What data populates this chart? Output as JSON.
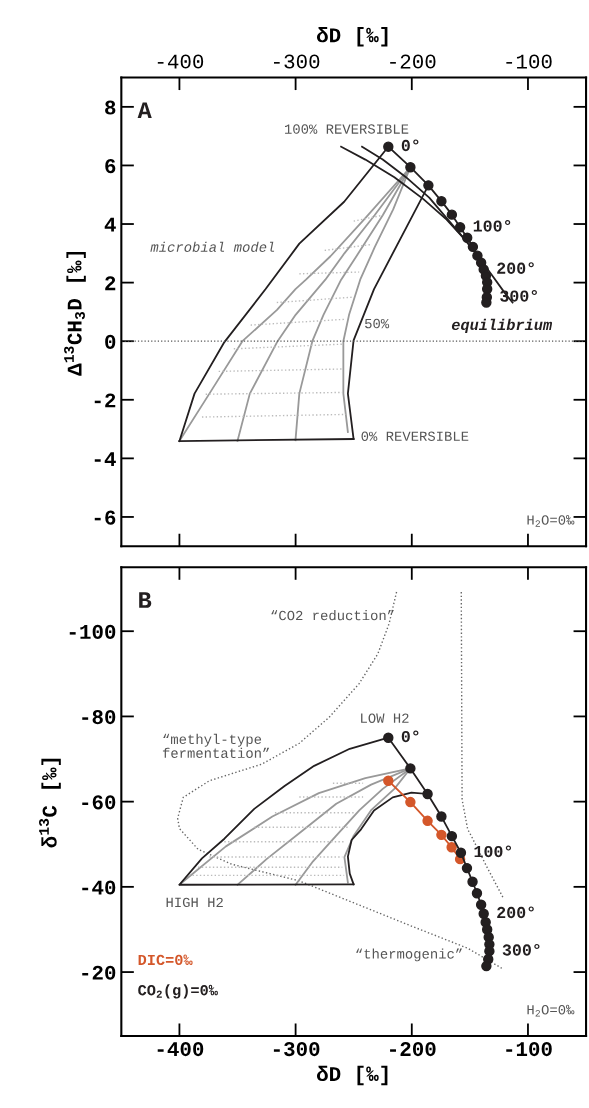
{
  "chart_data": [
    {
      "type": "line",
      "xlabel": "δD [‰]",
      "ylabel": "Δ$^{13}$CH$_{3}$D [‰]",
      "xlim": [
        -450,
        -50
      ],
      "xticks": [
        -400,
        -300,
        -200,
        -100
      ],
      "ylim": [
        -7,
        9
      ],
      "yticks": [
        -6,
        -4,
        -2,
        0,
        2,
        4,
        6,
        8
      ],
      "grid": false,
      "legend": false,
      "ref_lines": [
        {
          "axis": "y",
          "value": 0,
          "line_style": "dotted",
          "color": "#555555"
        }
      ],
      "annotations": [
        "A",
        "100% REVERSIBLE",
        "microbial model",
        "50%",
        "0% REVERSIBLE",
        "equilibrium",
        "H$_{2}$O=0‰",
        {
          "text": "0°",
          "x": -220.2,
          "y": 6.64
        },
        {
          "text": "100°",
          "x": -158.4,
          "y": 3.89
        },
        {
          "text": "200°",
          "x": -138.1,
          "y": 2.45
        },
        {
          "text": "300°",
          "x": -135.4,
          "y": 1.5
        }
      ],
      "series": [
        {
          "color": "#999999",
          "line_style": "solid",
          "x": [
            -201.2,
            -240,
            -270,
            -291.1,
            -300.1,
            -316,
            -345.8,
            -374.2,
            -400
          ],
          "values": [
            5.94,
            4.2,
            2.9,
            2.1,
            1.78,
            1.07,
            0.0,
            -1.79,
            -3.41
          ]
        },
        {
          "color": "#999999",
          "line_style": "solid",
          "x": [
            -201.2,
            -232,
            -258,
            -274.4,
            -300,
            -315.5,
            -339.4,
            -350
          ],
          "values": [
            5.94,
            4.3,
            3.0,
            2.1,
            0.9,
            0.0,
            -1.79,
            -3.4
          ]
        },
        {
          "color": "#999999",
          "line_style": "solid",
          "x": [
            -201.2,
            -225,
            -246,
            -260.8,
            -276,
            -285.6,
            -296.8,
            -300.1
          ],
          "values": [
            5.94,
            4.3,
            3.0,
            2.1,
            0.9,
            0.0,
            -1.79,
            -3.38
          ]
        },
        {
          "color": "#999999",
          "line_style": "solid",
          "x": [
            -201.2,
            -216,
            -232,
            -244.4,
            -254,
            -258.9,
            -258.9,
            -255
          ],
          "values": [
            5.94,
            4.5,
            3.2,
            2.1,
            0.9,
            0.0,
            -1.79,
            -3.1
          ]
        },
        {
          "color": "#bbbbbb",
          "line_style": "dotted",
          "x": [
            -380.6,
            -256.6
          ],
          "values": [
            -2.59,
            -2.5
          ]
        },
        {
          "color": "#bbbbbb",
          "line_style": "dotted",
          "x": [
            -377.4,
            -259.8
          ],
          "values": [
            -1.81,
            -1.75
          ]
        },
        {
          "color": "#bbbbbb",
          "line_style": "dotted",
          "x": [
            -366.2,
            -259.8
          ],
          "values": [
            -1.03,
            -0.95
          ]
        },
        {
          "color": "#bbbbbb",
          "line_style": "dotted",
          "x": [
            -353.2,
            -258.9
          ],
          "values": [
            -0.26,
            -0.1
          ]
        },
        {
          "color": "#bbbbbb",
          "line_style": "dotted",
          "x": [
            -338.7,
            -256.6
          ],
          "values": [
            0.55,
            0.75
          ]
        },
        {
          "color": "#bbbbbb",
          "line_style": "dotted",
          "x": [
            -316.2,
            -251.8
          ],
          "values": [
            1.32,
            1.5
          ]
        },
        {
          "color": "#bbbbbb",
          "line_style": "dotted",
          "x": [
            -296.8,
            -245.3
          ],
          "values": [
            2.3,
            2.36
          ]
        },
        {
          "color": "#bbbbbb",
          "line_style": "dotted",
          "x": [
            -275,
            -235
          ],
          "values": [
            3.1,
            3.3
          ]
        },
        {
          "color": "#bbbbbb",
          "line_style": "dotted",
          "x": [
            -250,
            -225
          ],
          "values": [
            4.1,
            4.3
          ]
        },
        {
          "color": "#231f20",
          "line_style": "solid",
          "x": [
            -220.2,
            -258.2,
            -296.8,
            -325.8,
            -361.3,
            -387,
            -400
          ],
          "values": [
            6.64,
            4.76,
            3.33,
            1.78,
            -0.03,
            -1.79,
            -3.41
          ]
        },
        {
          "color": "#231f20",
          "line_style": "solid",
          "x": [
            -185.7,
            -203.4,
            -232.5,
            -250.1,
            -255,
            -250.1
          ],
          "values": [
            5.32,
            3.98,
            1.78,
            0.03,
            -1.79,
            -3.34
          ]
        },
        {
          "color": "#231f20",
          "line_style": "solid",
          "x": [
            -400,
            -250.1
          ],
          "values": [
            -3.41,
            -3.34
          ]
        },
        {
          "color": "#231f20",
          "line_style": "solid",
          "x": [
            -260.8,
            -240,
            -215,
            -190,
            -170,
            -155,
            -142,
            -130,
            -120,
            -113.3
          ],
          "values": [
            6.64,
            6.2,
            5.6,
            4.85,
            4.15,
            3.5,
            2.85,
            2.2,
            1.65,
            1.32
          ]
        },
        {
          "color": "#231f20",
          "line_style": "solid",
          "x": [
            -242.8,
            -225,
            -205,
            -185,
            -170,
            -156
          ],
          "values": [
            6.64,
            6.2,
            5.6,
            4.9,
            4.2,
            3.55
          ]
        },
        {
          "color": "#231f20",
          "line_style": "solid",
          "marker": "circle",
          "x": [
            -220.2,
            -201.2,
            -185.7,
            -174.5,
            -165.5,
            -158.4,
            -152.3,
            -147.4,
            -143.5,
            -140.3,
            -138.1,
            -136.2,
            -135.1,
            -135.1,
            -135.4,
            -135.8
          ],
          "values": [
            6.64,
            5.94,
            5.32,
            4.78,
            4.32,
            3.89,
            3.53,
            3.22,
            2.92,
            2.68,
            2.45,
            2.23,
            2.01,
            1.78,
            1.5,
            1.32
          ]
        }
      ]
    },
    {
      "type": "line",
      "xlabel": "δD [‰]",
      "ylabel": "δ$^{13}$C [‰]",
      "xlim": [
        -450,
        -50
      ],
      "xticks": [
        -400,
        -300,
        -200,
        -100
      ],
      "ylim": [
        -5,
        -115
      ],
      "yticks": [
        -100,
        -80,
        -60,
        -40,
        -20
      ],
      "grid": false,
      "legend": false,
      "annotations": [
        "B",
        "LOW H2",
        "“methyl-type\nfermentation”",
        "“CO2 reduction”",
        "HIGH H2",
        "“thermogenic”",
        "H$_{2}$O=0‰",
        {
          "text": "0°",
          "x": -220.2,
          "y": -75.0
        },
        {
          "text": "100°",
          "x": -157.7,
          "y": -48.0
        },
        {
          "text": "200°",
          "x": -138.1,
          "y": -33.7
        },
        {
          "text": "300°",
          "x": -133.2,
          "y": -24.9
        }
      ],
      "series": [
        {
          "color": "#666666",
          "line_style": "dotted",
          "x": [
            -213.1,
            -219.5,
            -229.2,
            -245.3,
            -271.1,
            -296.8,
            -329.1,
            -374.2,
            -396.7,
            -401.5,
            -400,
            -383.9,
            -354.8,
            -296.8,
            -248.6,
            -200.3,
            -151.9,
            -121.3
          ],
          "values": [
            -109.2,
            -101.8,
            -94.7,
            -87.7,
            -79.8,
            -73.7,
            -68.8,
            -64.9,
            -61.0,
            -56.1,
            -53.7,
            -48.8,
            -45.3,
            -41.4,
            -36.1,
            -30.8,
            -25.6,
            -20.7
          ]
        },
        {
          "color": "#666666",
          "line_style": "dotted",
          "x": [
            -157.4,
            -156.7,
            -151.9,
            -148.7,
            -135.8,
            -121.3
          ],
          "values": [
            -109.2,
            -60.5,
            -53.5,
            -51.9,
            -44.9,
            -37.4
          ]
        },
        {
          "color": "#999999",
          "line_style": "solid",
          "x": [
            -201.2,
            -240,
            -280,
            -320,
            -360,
            -400
          ],
          "values": [
            -67.8,
            -65.5,
            -62,
            -56.5,
            -49.5,
            -40.5
          ]
        },
        {
          "color": "#999999",
          "line_style": "solid",
          "x": [
            -201.2,
            -235,
            -265,
            -295,
            -325,
            -350
          ],
          "values": [
            -67.8,
            -64,
            -59.5,
            -53,
            -46.5,
            -40.5
          ]
        },
        {
          "color": "#999999",
          "line_style": "solid",
          "x": [
            -201.2,
            -225,
            -245,
            -265,
            -285,
            -300
          ],
          "values": [
            -67.8,
            -63,
            -58,
            -52,
            -46,
            -40.5
          ]
        },
        {
          "color": "#999999",
          "line_style": "solid",
          "x": [
            -201.2,
            -215,
            -235,
            -250,
            -258,
            -255
          ],
          "values": [
            -67.8,
            -63,
            -58,
            -52,
            -47,
            -41
          ]
        },
        {
          "color": "#bbbbbb",
          "line_style": "dotted",
          "x": [
            -267.9,
            -241.9
          ],
          "values": [
            -64.3,
            -64.3
          ]
        },
        {
          "color": "#bbbbbb",
          "line_style": "dotted",
          "x": [
            -296.8,
            -241.9
          ],
          "values": [
            -61.1,
            -61.1
          ]
        },
        {
          "color": "#bbbbbb",
          "line_style": "dotted",
          "x": [
            -317.8,
            -250.1
          ],
          "values": [
            -57.4,
            -57.4
          ]
        },
        {
          "color": "#bbbbbb",
          "line_style": "dotted",
          "x": [
            -335.6,
            -255
          ],
          "values": [
            -54.0,
            -54.0
          ]
        },
        {
          "color": "#bbbbbb",
          "line_style": "dotted",
          "x": [
            -364.5,
            -258.2
          ],
          "values": [
            -50.6,
            -50.6
          ]
        },
        {
          "color": "#bbbbbb",
          "line_style": "dotted",
          "x": [
            -374.2,
            -259.8
          ],
          "values": [
            -47.0,
            -47.0
          ]
        },
        {
          "color": "#bbbbbb",
          "line_style": "dotted",
          "x": [
            -383.9,
            -259.8
          ],
          "values": [
            -44.6,
            -44.6
          ]
        },
        {
          "color": "#bbbbbb",
          "line_style": "dotted",
          "x": [
            -391.9,
            -258.2
          ],
          "values": [
            -42.7,
            -42.7
          ]
        },
        {
          "color": "#231f20",
          "line_style": "solid",
          "x": [
            -220.2,
            -253.4,
            -284,
            -309.8,
            -335.6,
            -361.3,
            -380.6,
            -400,
            -250.1
          ],
          "values": [
            -75.0,
            -72.4,
            -68.4,
            -63.6,
            -58.3,
            -51.3,
            -46.7,
            -40.5,
            -40.6
          ]
        },
        {
          "color": "#231f20",
          "line_style": "solid",
          "x": [
            -186.4,
            -200.3,
            -216.4,
            -232.5,
            -243.7,
            -251.8,
            -255,
            -253.4,
            -250.1
          ],
          "values": [
            -61.8,
            -62.1,
            -61.0,
            -57.9,
            -53.5,
            -51.0,
            -47.1,
            -43.1,
            -40.6
          ]
        },
        {
          "name": "DIC=0‰",
          "color": "#d4572a",
          "line_style": "solid",
          "marker": "circle",
          "x": [
            -220.2,
            -201.2,
            -186.4,
            -174.5,
            -165.7,
            -158.4
          ],
          "values": [
            -64.9,
            -59.9,
            -55.5,
            -52.2,
            -49.3,
            -46.5
          ]
        },
        {
          "name": "CO$_{2}$(g)=0‰",
          "color": "#231f20",
          "line_style": "solid",
          "marker": "circle",
          "x": [
            -220.2,
            -201.2,
            -186.4,
            -174.5,
            -165.5,
            -157.7,
            -152.5,
            -147.7,
            -143.9,
            -140.3,
            -138.1,
            -136.4,
            -135.1,
            -133.8,
            -133.2,
            -133.2,
            -134.2,
            -135.8
          ],
          "values": [
            -75.0,
            -67.8,
            -61.8,
            -56.5,
            -51.9,
            -48.0,
            -44.4,
            -41.2,
            -38.5,
            -35.8,
            -33.7,
            -31.7,
            -30.0,
            -28.2,
            -26.5,
            -24.9,
            -23.0,
            -21.4
          ]
        }
      ]
    }
  ]
}
